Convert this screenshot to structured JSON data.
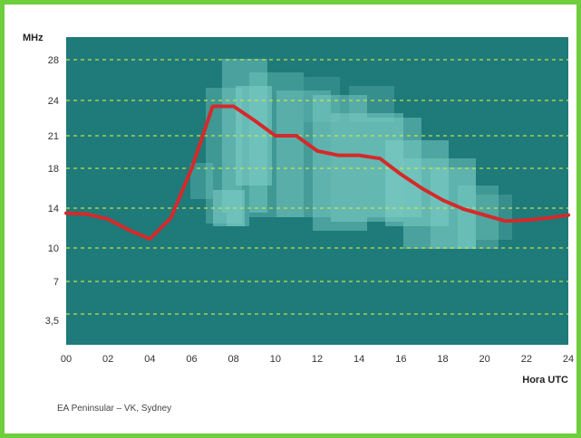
{
  "chart_data": {
    "type": "line",
    "ylabel": "MHz",
    "xlabel": "Hora UTC",
    "x_tick_labels": [
      "00",
      "02",
      "04",
      "06",
      "08",
      "10",
      "12",
      "14",
      "16",
      "18",
      "20",
      "22",
      "24"
    ],
    "y_tick_labels": [
      "28",
      "24",
      "21",
      "18",
      "14",
      "10",
      "7",
      "3,5"
    ],
    "xlim": [
      0,
      24
    ],
    "grid": true,
    "legend_position": "bottom-left",
    "series": [
      {
        "name": "EA Peninsular – VK, Sydney",
        "color": "#d42a2a",
        "x": [
          0,
          1,
          2,
          3,
          4,
          5,
          6,
          7,
          8,
          9,
          10,
          11,
          12,
          13,
          14,
          15,
          16,
          17,
          18,
          19,
          20,
          21,
          22,
          23,
          24
        ],
        "y": [
          13.5,
          13.4,
          12.9,
          11.8,
          10.9,
          13.0,
          18.0,
          23.5,
          23.5,
          22.3,
          21.0,
          21.0,
          19.6,
          19.2,
          19.2,
          18.9,
          17.4,
          16.0,
          14.8,
          13.9,
          13.3,
          12.7,
          12.8,
          13.0,
          13.3
        ]
      }
    ],
    "colors": {
      "plot_background": "#1f7a7a",
      "grid": "#c8e64a",
      "heat_light": "#7fd0c8",
      "frame": "#6fce3c"
    }
  }
}
